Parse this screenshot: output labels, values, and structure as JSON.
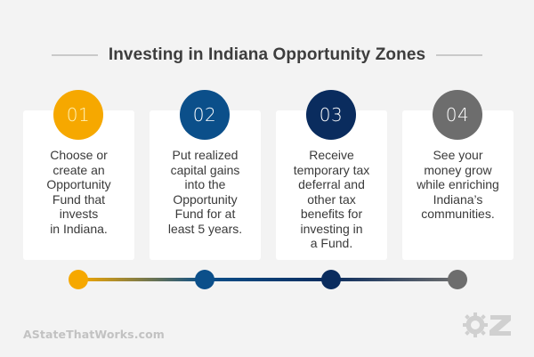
{
  "title": "Investing in Indiana Opportunity Zones",
  "steps": [
    {
      "number": "01",
      "text": "Choose or\ncreate an\nOpportunity\nFund that\ninvests\nin Indiana.",
      "color": "#f6a800",
      "number_color": "#fff2b8"
    },
    {
      "number": "02",
      "text": "Put realized\ncapital gains\ninto the\nOpportunity\nFund for at\nleast 5 years.",
      "color": "#0b4f8a",
      "number_color": "#ffffff"
    },
    {
      "number": "03",
      "text": "Receive\ntemporary tax\ndeferral and\nother tax\nbenefits for\ninvesting in\na Fund.",
      "color": "#0a2c5e",
      "number_color": "#ffffff"
    },
    {
      "number": "04",
      "text": "See your\nmoney grow\nwhile enriching\nIndiana’s\ncommunities.",
      "color": "#6d6d6d",
      "number_color": "#ffffff"
    }
  ],
  "footer": {
    "website": "AStateThatWorks.com",
    "logo_icon": "oz-gear-logo-icon"
  }
}
